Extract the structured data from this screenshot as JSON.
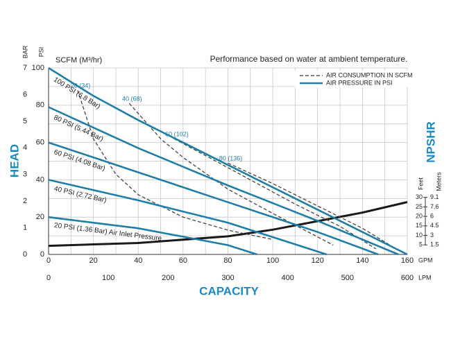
{
  "chart_data": {
    "type": "line",
    "title": "Performance based on water at ambient temperature.",
    "series_header": "SCFM (M³/hr)",
    "legend": {
      "dashed": "AIR CONSUMPTION IN SCFM",
      "solid": "AIR PRESSURE IN PSI"
    },
    "x": {
      "label": "CAPACITY",
      "gpm_unit": "GPM",
      "xlim": [
        0,
        160
      ],
      "xticks": [
        0,
        20,
        40,
        60,
        80,
        100,
        120,
        140,
        160
      ],
      "x_grid": [
        0,
        10,
        20,
        30,
        40,
        50,
        60,
        70,
        80,
        90,
        100,
        110,
        120,
        130,
        140,
        150,
        160
      ],
      "lpm_unit": "LPM",
      "lpm_xlim": [
        0,
        600
      ],
      "lpm_xticks": [
        0,
        100,
        200,
        300,
        400,
        500,
        600
      ]
    },
    "y": {
      "label": "HEAD",
      "psi_unit": "PSI",
      "ylim": [
        0,
        100
      ],
      "yticks": [
        0,
        20,
        40,
        60,
        80,
        100
      ],
      "y_grid": [
        0,
        10,
        20,
        30,
        40,
        50,
        60,
        70,
        80,
        90,
        100
      ],
      "bar_unit": "BAR",
      "bar_ylim": [
        0,
        7
      ],
      "bar_yticks": [
        0,
        1,
        2,
        3,
        4,
        5,
        6,
        7
      ]
    },
    "npshr": {
      "label": "NPSHR",
      "feet_unit": "Feet",
      "meters_unit": "Meters",
      "ylim": [
        0,
        98
      ],
      "feet_ticks": [
        5,
        10,
        15,
        20,
        25,
        30
      ],
      "meter_ticks": [
        {
          "value": 5,
          "label": "1.5"
        },
        {
          "value": 10,
          "label": "3"
        },
        {
          "value": 15,
          "label": "4.5"
        },
        {
          "value": 20,
          "label": "6"
        },
        {
          "value": 25,
          "label": "7.6"
        },
        {
          "value": 30,
          "label": "9.1"
        }
      ],
      "color": "#1a1a1a",
      "x": [
        0,
        40,
        80,
        100,
        120,
        140,
        160
      ],
      "values": [
        4.5,
        6,
        9.5,
        13,
        17.5,
        22,
        27.5
      ]
    },
    "pressure_series": [
      {
        "name": "100 PSI (6.8 Bar)",
        "color": "#1f7ea8",
        "x": [
          0,
          20,
          40,
          60,
          80,
          100,
          120,
          140,
          160
        ],
        "values": [
          100,
          85,
          72,
          60,
          48,
          36,
          24,
          12,
          0
        ]
      },
      {
        "name": "80 PSI (5.44 Bar)",
        "color": "#1f7ea8",
        "x": [
          0,
          40,
          80,
          120,
          156
        ],
        "values": [
          79,
          57,
          37,
          18,
          0
        ]
      },
      {
        "name": "60 PSI (4.08 Bar)",
        "color": "#1f7ea8",
        "x": [
          0,
          40,
          80,
          120,
          147
        ],
        "values": [
          60,
          44,
          28,
          12,
          0
        ]
      },
      {
        "name": "40 PSI (2.72 Bar)",
        "color": "#1f7ea8",
        "x": [
          0,
          40,
          80,
          124
        ],
        "values": [
          40,
          29,
          17,
          0
        ]
      },
      {
        "name": "20 PSI (1.36 Bar) Air Inlet Pressure",
        "color": "#1f7ea8",
        "x": [
          0,
          40,
          80,
          93
        ],
        "values": [
          20,
          14,
          5,
          0
        ]
      }
    ],
    "air_series": [
      {
        "name": "20 (34)",
        "color": "#444444",
        "x": [
          13,
          20,
          30,
          40,
          60,
          80,
          100
        ],
        "values": [
          88,
          62,
          43,
          32,
          20,
          13,
          8
        ]
      },
      {
        "name": "40 (68)",
        "color": "#444444",
        "x": [
          36,
          50,
          60,
          80,
          100,
          127
        ],
        "values": [
          81,
          62,
          52,
          35,
          22,
          5
        ]
      },
      {
        "name": "60 (102)",
        "color": "#444444",
        "x": [
          56,
          70,
          90,
          110,
          130,
          146
        ],
        "values": [
          62,
          53,
          40,
          27,
          15,
          3
        ]
      },
      {
        "name": "80 (136)",
        "color": "#444444",
        "x": [
          80,
          100,
          120,
          140,
          155
        ],
        "values": [
          49,
          38,
          26,
          14,
          3
        ]
      }
    ]
  }
}
